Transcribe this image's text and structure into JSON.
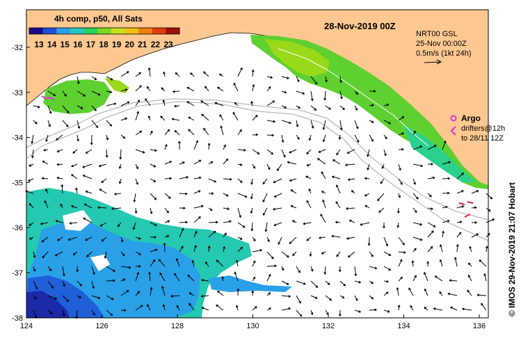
{
  "map": {
    "colorbar_title": "4h comp, p50, All Sats",
    "colorbar_ticks": [
      "13",
      "14",
      "15",
      "16",
      "17",
      "18",
      "19",
      "20",
      "21",
      "22",
      "23"
    ],
    "colorbar_colors": [
      "#1a0a8c",
      "#1f4fd6",
      "#2aa0e8",
      "#25c8c0",
      "#2ad060",
      "#7cd81f",
      "#c8e01a",
      "#f0c010",
      "#f08010",
      "#e03c10",
      "#a01008"
    ],
    "date_title": "28-Nov-2019 00Z",
    "product": "NRT00 GSL",
    "product_time": "25-Nov 00:00Z",
    "current_scale": "0.5m/s (1kt 24h)",
    "argo_label": "Argo",
    "drifter_line1": "drifters@12h",
    "drifter_line2": "to 28/11 12Z",
    "side_credit": "© IMOS 29-Nov-2019 21:07 Hobart",
    "x_ticks": [
      "124",
      "126",
      "128",
      "130",
      "132",
      "134",
      "136"
    ],
    "y_ticks": [
      "-32",
      "-33",
      "-34",
      "-35",
      "-36",
      "-37",
      "-38"
    ],
    "land_color": "#fcc890",
    "ocean_color": "#ffffff"
  }
}
